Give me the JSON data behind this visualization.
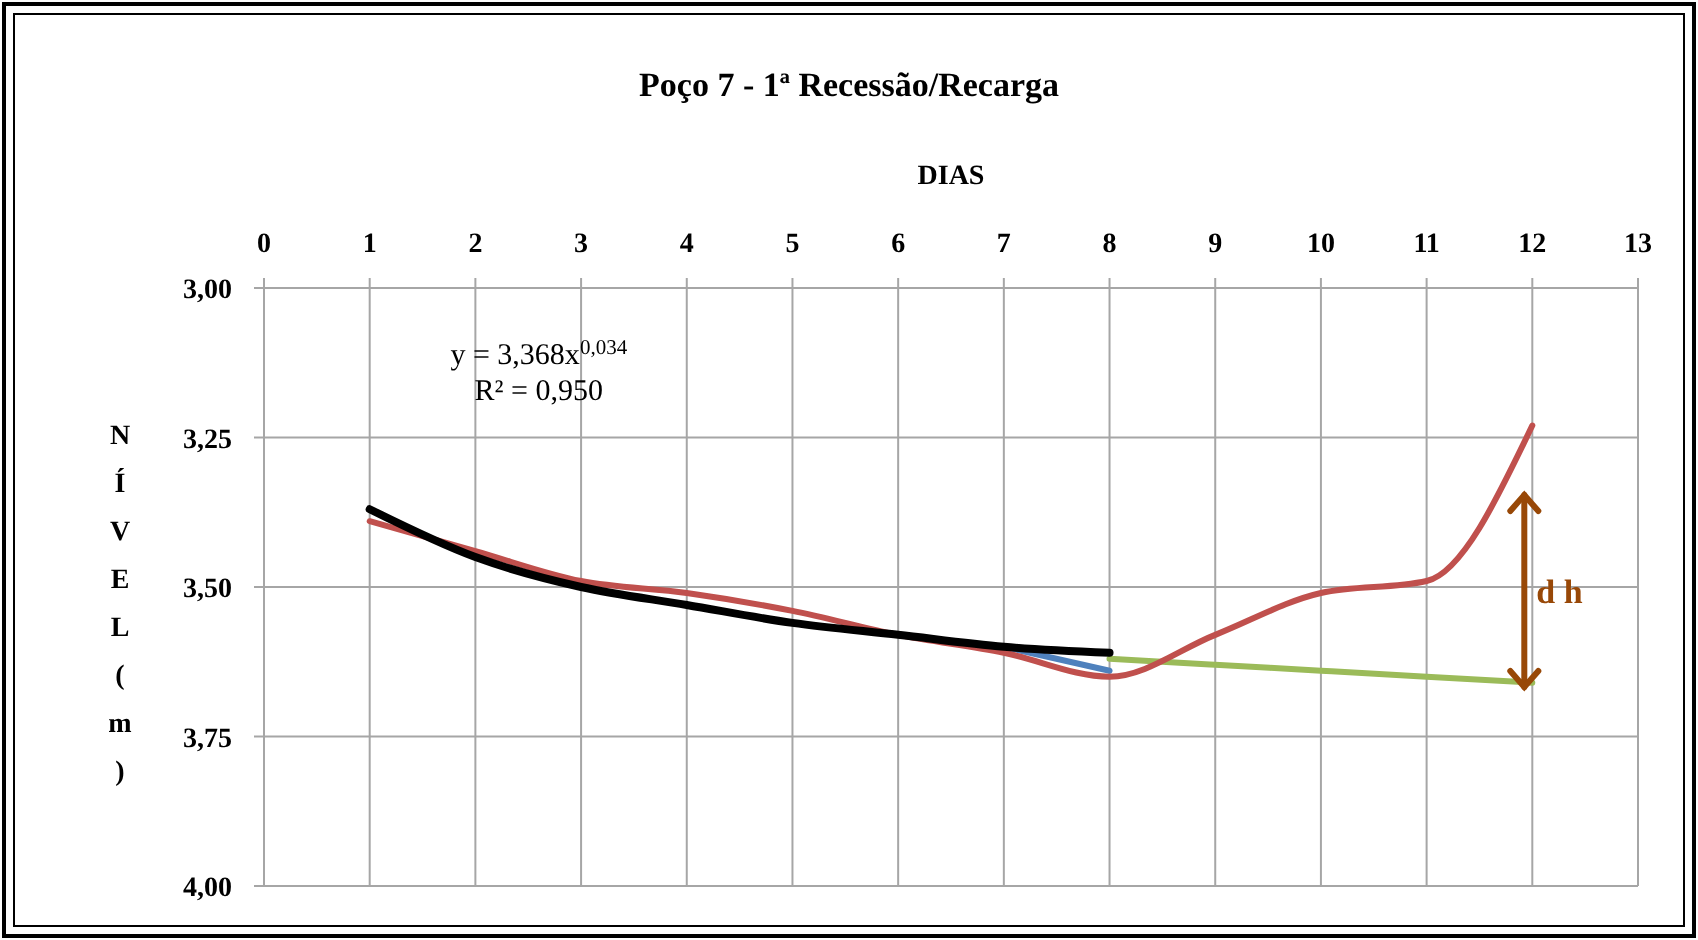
{
  "chart_data": {
    "type": "line",
    "title": "Poço 7 - 1ª Recessão/Recarga",
    "xlabel": "DIAS",
    "ylabel": "NÍVEL (m)",
    "x": [
      1,
      2,
      3,
      4,
      5,
      6,
      7,
      8,
      9,
      10,
      11,
      12
    ],
    "series": [
      {
        "color": "#9bbb59",
        "values": [
          null,
          null,
          null,
          null,
          null,
          null,
          null,
          3.62,
          3.63,
          3.64,
          3.65,
          3.66
        ]
      },
      {
        "color": "#4f81bd",
        "values": [
          null,
          null,
          null,
          null,
          null,
          null,
          3.6,
          3.64,
          null,
          null,
          null,
          null
        ]
      },
      {
        "color": "#c0504d",
        "values": [
          3.39,
          3.44,
          3.49,
          3.51,
          3.54,
          3.58,
          3.61,
          3.65,
          3.58,
          3.51,
          3.49,
          3.23
        ]
      },
      {
        "color": "#000000",
        "values": [
          3.37,
          3.45,
          3.5,
          3.53,
          3.56,
          3.58,
          3.6,
          3.61,
          null,
          null,
          null,
          null
        ]
      }
    ],
    "xlim": [
      0,
      13
    ],
    "xticks": [
      0,
      1,
      2,
      3,
      4,
      5,
      6,
      7,
      8,
      9,
      10,
      11,
      12,
      13
    ],
    "ylim": [
      4,
      3
    ],
    "yticks": [
      {
        "value": 3,
        "label": "3,00"
      },
      {
        "value": 3.25,
        "label": "3,25"
      },
      {
        "value": 3.5,
        "label": "3,50"
      },
      {
        "value": 3.75,
        "label": "3,75"
      },
      {
        "value": 4,
        "label": "4,00"
      }
    ],
    "grid": true,
    "annotations": [
      "y = 3,368x$^{0,034}$",
      "R² = 0,950",
      "d h"
    ]
  }
}
